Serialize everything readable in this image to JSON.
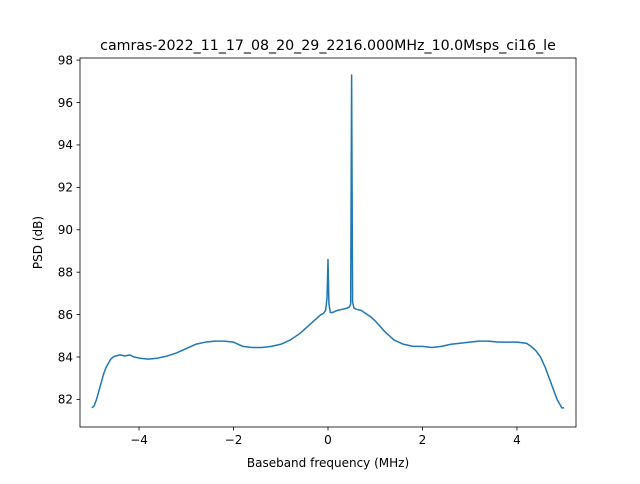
{
  "chart_data": {
    "type": "line",
    "title": "camras-2022_11_17_08_20_29_2216.000MHz_10.0Msps_ci16_le",
    "xlabel": "Baseband frequency (MHz)",
    "ylabel": "PSD (dB)",
    "xlim": [
      -5.25,
      5.25
    ],
    "ylim": [
      80.7,
      98.1
    ],
    "xticks": [
      -4,
      -2,
      0,
      2,
      4
    ],
    "xtick_labels": [
      "−4",
      "−2",
      "0",
      "2",
      "4"
    ],
    "yticks": [
      82,
      84,
      86,
      88,
      90,
      92,
      94,
      96,
      98
    ],
    "ytick_labels": [
      "82",
      "84",
      "86",
      "88",
      "90",
      "92",
      "94",
      "96",
      "98"
    ],
    "grid": false,
    "line_color": "#1f77b4",
    "series": [
      {
        "x": [
          -5.0,
          -4.95,
          -4.9,
          -4.85,
          -4.8,
          -4.75,
          -4.7,
          -4.65,
          -4.6,
          -4.55,
          -4.5,
          -4.4,
          -4.3,
          -4.2,
          -4.1,
          -4.0,
          -3.8,
          -3.6,
          -3.4,
          -3.2,
          -3.0,
          -2.8,
          -2.6,
          -2.4,
          -2.2,
          -2.0,
          -1.8,
          -1.6,
          -1.4,
          -1.2,
          -1.0,
          -0.8,
          -0.6,
          -0.4,
          -0.3,
          -0.2,
          -0.15,
          -0.1,
          -0.05,
          -0.02,
          0.0,
          0.02,
          0.05,
          0.1,
          0.2,
          0.3,
          0.4,
          0.45,
          0.48,
          0.5,
          0.52,
          0.55,
          0.6,
          0.7,
          0.8,
          0.9,
          1.0,
          1.2,
          1.4,
          1.6,
          1.8,
          2.0,
          2.2,
          2.4,
          2.6,
          2.8,
          3.0,
          3.2,
          3.4,
          3.6,
          3.8,
          4.0,
          4.2,
          4.3,
          4.4,
          4.5,
          4.6,
          4.65,
          4.7,
          4.75,
          4.8,
          4.85,
          4.9,
          4.95,
          5.0
        ],
        "y": [
          81.6,
          81.7,
          82.0,
          82.4,
          82.8,
          83.2,
          83.5,
          83.7,
          83.9,
          84.0,
          84.05,
          84.1,
          84.05,
          84.1,
          84.0,
          83.95,
          83.9,
          83.95,
          84.05,
          84.2,
          84.4,
          84.6,
          84.7,
          84.75,
          84.75,
          84.7,
          84.5,
          84.45,
          84.45,
          84.5,
          84.6,
          84.8,
          85.1,
          85.5,
          85.7,
          85.9,
          86.0,
          86.05,
          86.2,
          86.8,
          88.6,
          86.5,
          86.1,
          86.1,
          86.2,
          86.25,
          86.3,
          86.35,
          86.5,
          97.3,
          86.6,
          86.3,
          86.25,
          86.2,
          86.05,
          85.9,
          85.7,
          85.2,
          84.8,
          84.6,
          84.5,
          84.5,
          84.45,
          84.5,
          84.6,
          84.65,
          84.7,
          84.75,
          84.75,
          84.7,
          84.7,
          84.7,
          84.65,
          84.5,
          84.3,
          84.0,
          83.5,
          83.2,
          82.9,
          82.6,
          82.3,
          82.0,
          81.8,
          81.6,
          81.6
        ]
      }
    ]
  }
}
